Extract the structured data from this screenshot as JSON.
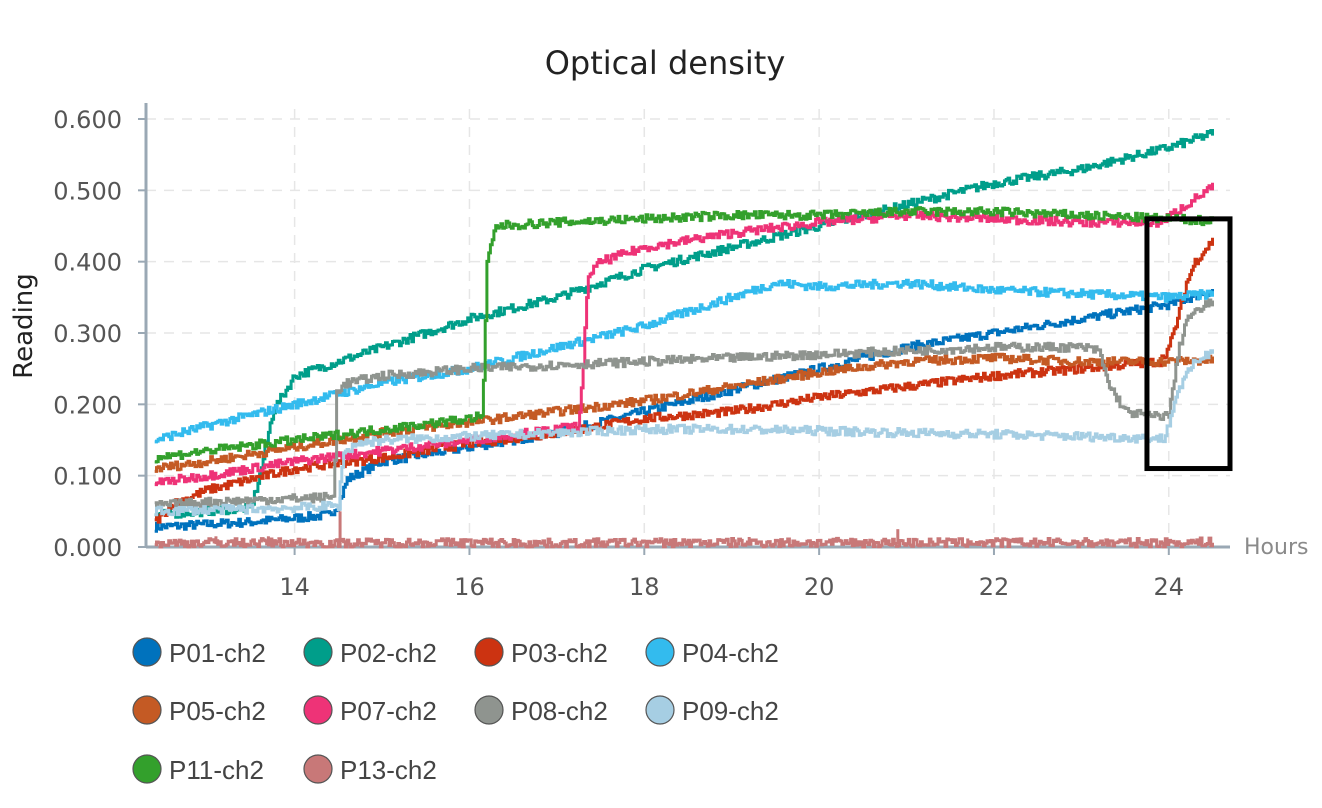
{
  "chart_data": {
    "type": "line",
    "title": "Optical density",
    "xlabel": "Hours",
    "ylabel": "Reading",
    "xlim": [
      12.3,
      24.7
    ],
    "ylim": [
      0,
      0.6
    ],
    "xticks": [
      "14",
      "16",
      "18",
      "20",
      "22",
      "24"
    ],
    "yticks": [
      "0.000",
      "0.100",
      "0.200",
      "0.300",
      "0.400",
      "0.500",
      "0.600"
    ],
    "grid": true,
    "legend_position": "bottom",
    "annotation": {
      "type": "rectangle",
      "x_range": [
        23.75,
        24.7
      ],
      "y_range": [
        0.11,
        0.46
      ]
    },
    "series": [
      {
        "name": "P01-ch2",
        "color": "#0072BD",
        "points": [
          [
            12.4,
            0.028
          ],
          [
            13.5,
            0.035
          ],
          [
            14.4,
            0.045
          ],
          [
            14.5,
            0.06
          ],
          [
            14.6,
            0.095
          ],
          [
            15.0,
            0.12
          ],
          [
            16.0,
            0.14
          ],
          [
            17.0,
            0.16
          ],
          [
            18.0,
            0.19
          ],
          [
            19.0,
            0.22
          ],
          [
            20.0,
            0.25
          ],
          [
            21.0,
            0.28
          ],
          [
            22.0,
            0.3
          ],
          [
            23.0,
            0.32
          ],
          [
            24.0,
            0.34
          ],
          [
            24.5,
            0.36
          ]
        ]
      },
      {
        "name": "P02-ch2",
        "color": "#009E8A",
        "points": [
          [
            12.4,
            0.045
          ],
          [
            13.5,
            0.055
          ],
          [
            13.6,
            0.1
          ],
          [
            13.75,
            0.19
          ],
          [
            14.0,
            0.24
          ],
          [
            14.5,
            0.26
          ],
          [
            15.0,
            0.28
          ],
          [
            16.0,
            0.32
          ],
          [
            17.0,
            0.35
          ],
          [
            18.0,
            0.39
          ],
          [
            19.0,
            0.42
          ],
          [
            20.0,
            0.45
          ],
          [
            21.0,
            0.48
          ],
          [
            22.0,
            0.51
          ],
          [
            23.0,
            0.53
          ],
          [
            24.0,
            0.56
          ],
          [
            24.5,
            0.58
          ]
        ]
      },
      {
        "name": "P03-ch2",
        "color": "#CC3311",
        "points": [
          [
            12.4,
            0.035
          ],
          [
            12.6,
            0.06
          ],
          [
            13.0,
            0.08
          ],
          [
            14.0,
            0.11
          ],
          [
            15.0,
            0.125
          ],
          [
            16.0,
            0.145
          ],
          [
            17.0,
            0.16
          ],
          [
            18.0,
            0.18
          ],
          [
            19.0,
            0.19
          ],
          [
            20.0,
            0.21
          ],
          [
            21.0,
            0.225
          ],
          [
            22.0,
            0.24
          ],
          [
            23.0,
            0.25
          ],
          [
            23.9,
            0.26
          ],
          [
            24.0,
            0.28
          ],
          [
            24.1,
            0.32
          ],
          [
            24.2,
            0.37
          ],
          [
            24.3,
            0.4
          ],
          [
            24.5,
            0.43
          ]
        ]
      },
      {
        "name": "P04-ch2",
        "color": "#33BBEE",
        "points": [
          [
            12.4,
            0.15
          ],
          [
            13.0,
            0.17
          ],
          [
            14.0,
            0.2
          ],
          [
            15.0,
            0.23
          ],
          [
            16.0,
            0.25
          ],
          [
            17.0,
            0.28
          ],
          [
            18.0,
            0.31
          ],
          [
            19.0,
            0.35
          ],
          [
            19.5,
            0.37
          ],
          [
            20.0,
            0.365
          ],
          [
            21.0,
            0.37
          ],
          [
            22.0,
            0.36
          ],
          [
            23.0,
            0.355
          ],
          [
            24.0,
            0.35
          ],
          [
            24.5,
            0.355
          ]
        ]
      },
      {
        "name": "P05-ch2",
        "color": "#C45A24",
        "points": [
          [
            12.4,
            0.11
          ],
          [
            13.0,
            0.12
          ],
          [
            14.0,
            0.14
          ],
          [
            15.0,
            0.16
          ],
          [
            16.0,
            0.175
          ],
          [
            17.0,
            0.19
          ],
          [
            18.0,
            0.205
          ],
          [
            19.0,
            0.225
          ],
          [
            20.0,
            0.245
          ],
          [
            21.0,
            0.26
          ],
          [
            22.0,
            0.265
          ],
          [
            23.0,
            0.26
          ],
          [
            24.0,
            0.26
          ],
          [
            24.5,
            0.262
          ]
        ]
      },
      {
        "name": "P07-ch2",
        "color": "#EE3377",
        "points": [
          [
            12.4,
            0.09
          ],
          [
            13.0,
            0.1
          ],
          [
            14.0,
            0.12
          ],
          [
            15.0,
            0.135
          ],
          [
            16.0,
            0.15
          ],
          [
            17.0,
            0.165
          ],
          [
            17.25,
            0.17
          ],
          [
            17.3,
            0.25
          ],
          [
            17.35,
            0.38
          ],
          [
            17.5,
            0.4
          ],
          [
            18.0,
            0.42
          ],
          [
            19.0,
            0.44
          ],
          [
            20.0,
            0.455
          ],
          [
            20.5,
            0.46
          ],
          [
            21.0,
            0.465
          ],
          [
            22.0,
            0.46
          ],
          [
            23.0,
            0.455
          ],
          [
            23.9,
            0.455
          ],
          [
            24.2,
            0.48
          ],
          [
            24.5,
            0.505
          ]
        ]
      },
      {
        "name": "P08-ch2",
        "color": "#8F948F",
        "points": [
          [
            12.4,
            0.058
          ],
          [
            13.0,
            0.063
          ],
          [
            14.0,
            0.068
          ],
          [
            14.45,
            0.07
          ],
          [
            14.48,
            0.22
          ],
          [
            14.6,
            0.23
          ],
          [
            15.0,
            0.24
          ],
          [
            16.0,
            0.25
          ],
          [
            17.0,
            0.255
          ],
          [
            18.0,
            0.26
          ],
          [
            19.0,
            0.265
          ],
          [
            20.0,
            0.27
          ],
          [
            21.0,
            0.275
          ],
          [
            22.0,
            0.28
          ],
          [
            23.0,
            0.28
          ],
          [
            23.2,
            0.275
          ],
          [
            23.3,
            0.23
          ],
          [
            23.5,
            0.19
          ],
          [
            23.8,
            0.183
          ],
          [
            24.0,
            0.185
          ],
          [
            24.1,
            0.27
          ],
          [
            24.2,
            0.32
          ],
          [
            24.5,
            0.345
          ]
        ]
      },
      {
        "name": "P09-ch2",
        "color": "#A6CEE3",
        "points": [
          [
            12.4,
            0.05
          ],
          [
            13.0,
            0.052
          ],
          [
            14.0,
            0.055
          ],
          [
            14.5,
            0.058
          ],
          [
            14.55,
            0.13
          ],
          [
            14.7,
            0.145
          ],
          [
            15.0,
            0.15
          ],
          [
            16.0,
            0.155
          ],
          [
            17.0,
            0.16
          ],
          [
            18.0,
            0.165
          ],
          [
            19.0,
            0.165
          ],
          [
            20.0,
            0.163
          ],
          [
            21.0,
            0.16
          ],
          [
            22.0,
            0.158
          ],
          [
            23.0,
            0.155
          ],
          [
            23.95,
            0.152
          ],
          [
            24.1,
            0.22
          ],
          [
            24.3,
            0.26
          ],
          [
            24.5,
            0.275
          ]
        ]
      },
      {
        "name": "P11-ch2",
        "color": "#33A02C",
        "points": [
          [
            12.4,
            0.125
          ],
          [
            13.0,
            0.135
          ],
          [
            14.0,
            0.15
          ],
          [
            15.0,
            0.165
          ],
          [
            16.0,
            0.18
          ],
          [
            16.15,
            0.185
          ],
          [
            16.2,
            0.4
          ],
          [
            16.3,
            0.45
          ],
          [
            17.0,
            0.455
          ],
          [
            18.0,
            0.46
          ],
          [
            19.0,
            0.465
          ],
          [
            20.0,
            0.465
          ],
          [
            21.0,
            0.47
          ],
          [
            22.0,
            0.47
          ],
          [
            23.0,
            0.465
          ],
          [
            24.0,
            0.46
          ],
          [
            24.5,
            0.457
          ]
        ]
      },
      {
        "name": "P13-ch2",
        "color": "#C87878",
        "points": [
          [
            12.4,
            0.005
          ],
          [
            13.0,
            0.006
          ],
          [
            14.0,
            0.006
          ],
          [
            14.5,
            0.005
          ],
          [
            15.0,
            0.006
          ],
          [
            16.0,
            0.006
          ],
          [
            17.0,
            0.005
          ],
          [
            18.0,
            0.006
          ],
          [
            19.0,
            0.006
          ],
          [
            20.0,
            0.006
          ],
          [
            21.0,
            0.006
          ],
          [
            22.0,
            0.006
          ],
          [
            23.0,
            0.006
          ],
          [
            24.0,
            0.006
          ],
          [
            24.5,
            0.007
          ]
        ],
        "spikes": [
          [
            13.1,
            0.015
          ],
          [
            13.7,
            0.015
          ],
          [
            14.52,
            0.05
          ],
          [
            16.2,
            0.012
          ],
          [
            19.2,
            0.014
          ],
          [
            20.9,
            0.025
          ],
          [
            21.7,
            0.012
          ],
          [
            23.5,
            0.012
          ]
        ]
      }
    ]
  }
}
